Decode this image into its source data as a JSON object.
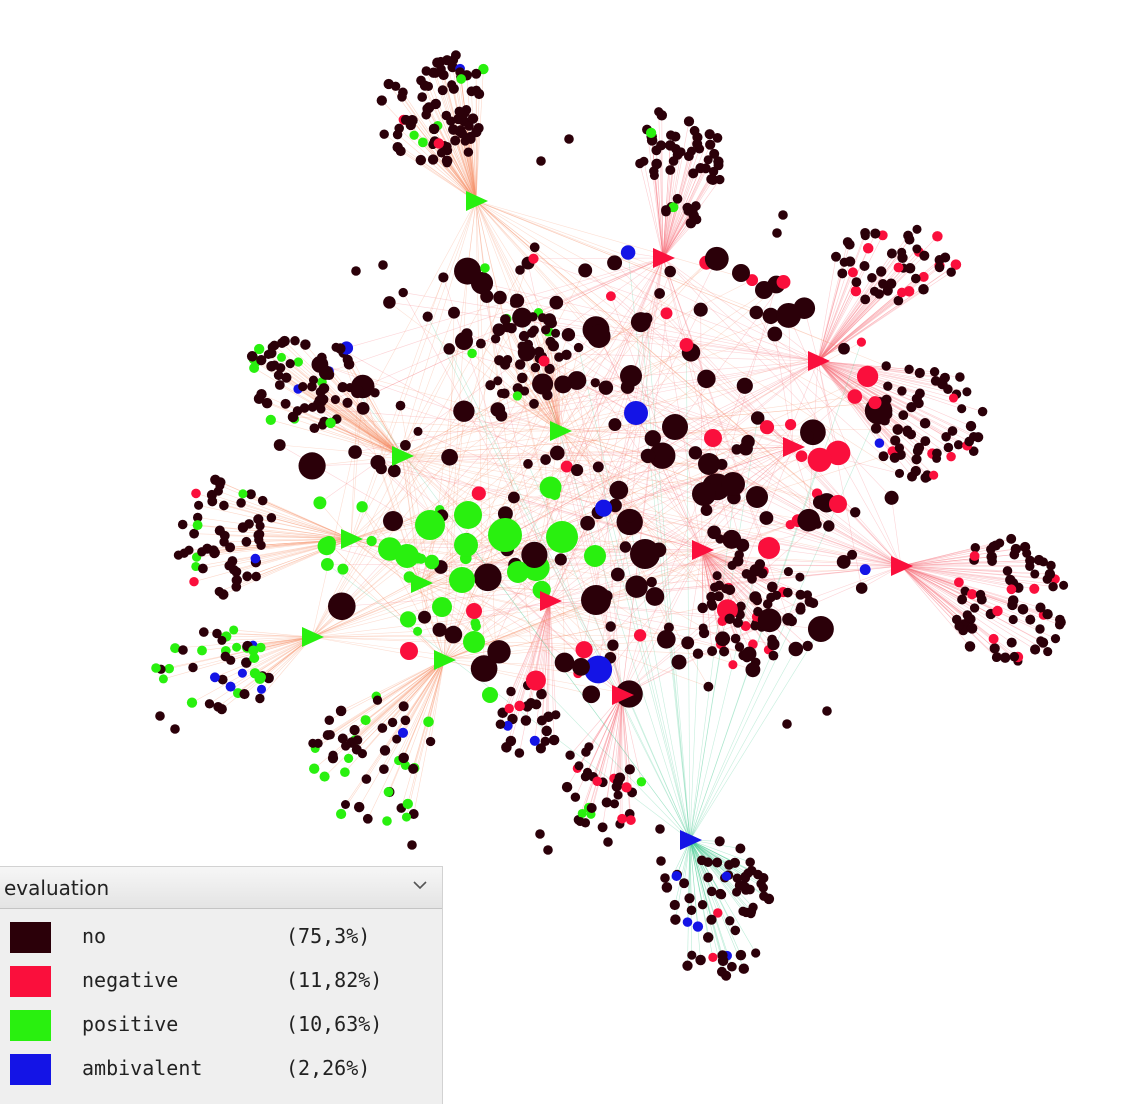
{
  "colors": {
    "no": "#2b0009",
    "negative": "#fa0f3c",
    "positive": "#29f00f",
    "ambivalent": "#1414e6",
    "edge_positive": "#f5936b",
    "edge_negative": "#f5707a",
    "edge_ambivalent": "#3cc88c"
  },
  "legend": {
    "attribute": "evaluation",
    "items": [
      {
        "key": "no",
        "label": "no",
        "percent": "(75,3%)",
        "color": "#2b0009"
      },
      {
        "key": "negative",
        "label": "negative",
        "percent": "(11,82%)",
        "color": "#fa0f3c"
      },
      {
        "key": "positive",
        "label": "positive",
        "percent": "(10,63%)",
        "color": "#29f00f"
      },
      {
        "key": "ambivalent",
        "label": "ambivalent",
        "percent": "(2,26%)",
        "color": "#1414e6"
      }
    ]
  },
  "network": {
    "hubs": [
      {
        "id": "h1",
        "category": "positive"
      },
      {
        "id": "h2",
        "category": "negative"
      },
      {
        "id": "h3",
        "category": "negative"
      },
      {
        "id": "h4",
        "category": "positive"
      },
      {
        "id": "h5",
        "category": "positive"
      },
      {
        "id": "h6",
        "category": "negative"
      },
      {
        "id": "h7",
        "category": "positive"
      },
      {
        "id": "h8",
        "category": "negative"
      },
      {
        "id": "h9",
        "category": "negative"
      },
      {
        "id": "h10",
        "category": "positive"
      },
      {
        "id": "h11",
        "category": "positive"
      },
      {
        "id": "h12",
        "category": "negative"
      },
      {
        "id": "h13",
        "category": "positive"
      },
      {
        "id": "h14",
        "category": "negative"
      },
      {
        "id": "h15",
        "category": "ambivalent"
      }
    ]
  }
}
